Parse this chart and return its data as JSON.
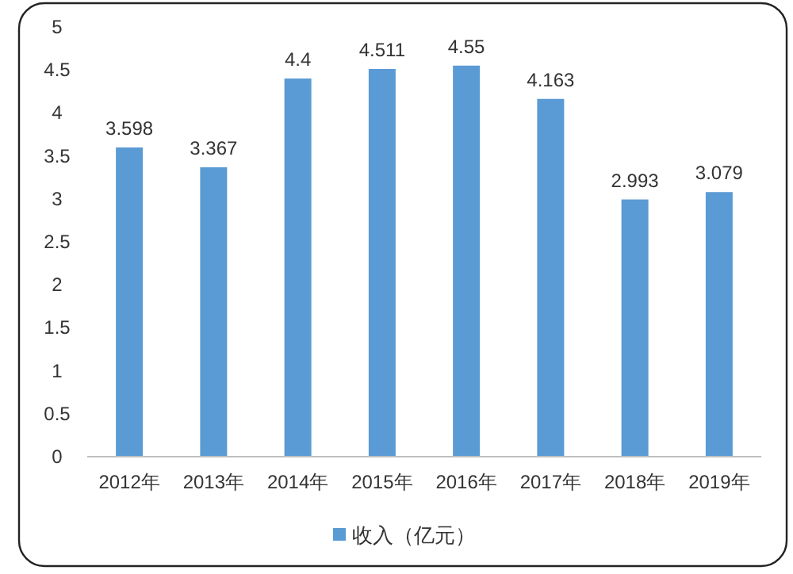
{
  "chart_data": {
    "type": "bar",
    "categories": [
      "2012年",
      "2013年",
      "2014年",
      "2015年",
      "2016年",
      "2017年",
      "2018年",
      "2019年"
    ],
    "series": [
      {
        "name": "收入（亿元）",
        "color": "#5b9bd5",
        "values": [
          3.598,
          3.367,
          4.4,
          4.511,
          4.55,
          4.163,
          2.993,
          3.079
        ]
      }
    ],
    "ylim": [
      0,
      5
    ],
    "yticks": [
      0,
      0.5,
      1,
      1.5,
      2,
      2.5,
      3,
      3.5,
      4,
      4.5,
      5
    ],
    "data_labels": true,
    "grid": false,
    "legend": "bottom"
  }
}
